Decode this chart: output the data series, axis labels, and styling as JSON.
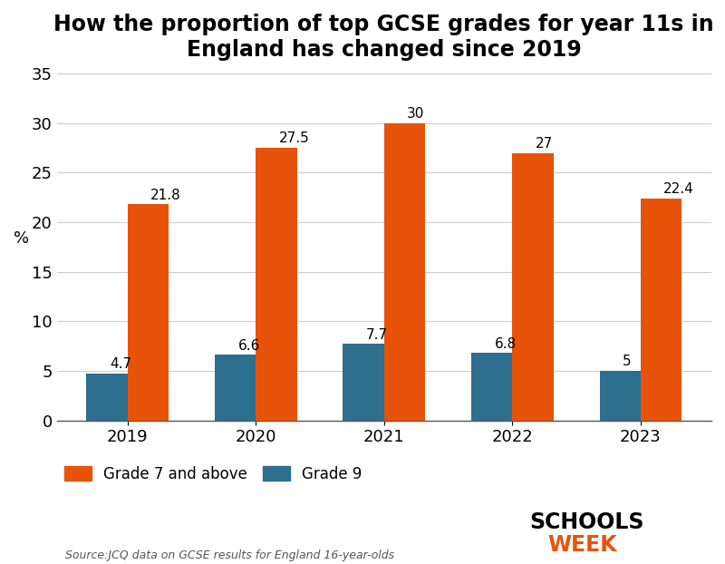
{
  "title": "How the proportion of top GCSE grades for year 11s in\nEngland has changed since 2019",
  "years": [
    "2019",
    "2020",
    "2021",
    "2022",
    "2023"
  ],
  "grade7_values": [
    21.8,
    27.5,
    30,
    27,
    22.4
  ],
  "grade9_values": [
    4.7,
    6.6,
    7.7,
    6.8,
    5
  ],
  "grade7_labels": [
    "21.8",
    "27.5",
    "30",
    "27",
    "22.4"
  ],
  "grade9_labels": [
    "4.7",
    "6.6",
    "7.7",
    "6.8",
    "5"
  ],
  "grade7_color": "#E8530A",
  "grade9_color": "#2E6E8E",
  "ylabel": "%",
  "ylim": [
    0,
    35
  ],
  "yticks": [
    0,
    5,
    10,
    15,
    20,
    25,
    30,
    35
  ],
  "bar_width": 0.32,
  "title_fontsize": 17,
  "tick_fontsize": 13,
  "label_fontsize": 11,
  "legend_fontsize": 12,
  "source_text": "Source:JCQ data on GCSE results for England 16-year-olds",
  "background_color": "#FFFFFF",
  "grid_color": "#CCCCCC"
}
